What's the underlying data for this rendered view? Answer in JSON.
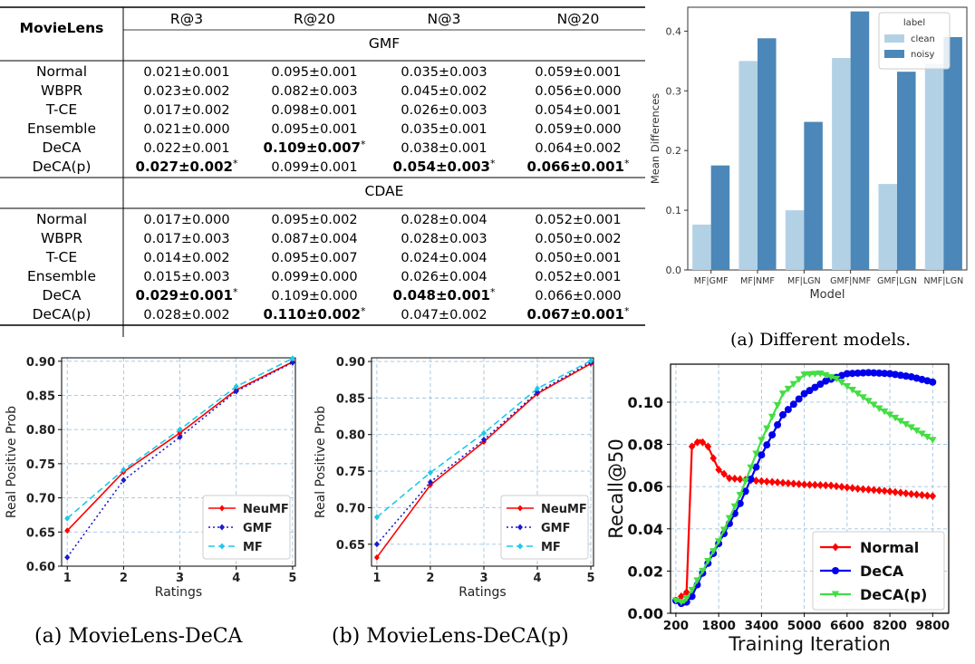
{
  "table": {
    "dataset_label": "MovieLens",
    "columns": [
      "R@3",
      "R@20",
      "N@3",
      "N@20"
    ],
    "sections": [
      {
        "name": "GMF",
        "rows": [
          {
            "method": "Normal",
            "cells": [
              "0.021±0.001",
              "0.095±0.001",
              "0.035±0.003",
              "0.059±0.001"
            ],
            "bold": [
              false,
              false,
              false,
              false
            ],
            "star": [
              false,
              false,
              false,
              false
            ]
          },
          {
            "method": "WBPR",
            "cells": [
              "0.023±0.002",
              "0.082±0.003",
              "0.045±0.002",
              "0.056±0.000"
            ],
            "bold": [
              false,
              false,
              false,
              false
            ],
            "star": [
              false,
              false,
              false,
              false
            ]
          },
          {
            "method": "T-CE",
            "cells": [
              "0.017±0.002",
              "0.098±0.001",
              "0.026±0.003",
              "0.054±0.001"
            ],
            "bold": [
              false,
              false,
              false,
              false
            ],
            "star": [
              false,
              false,
              false,
              false
            ]
          },
          {
            "method": "Ensemble",
            "cells": [
              "0.021±0.000",
              "0.095±0.001",
              "0.035±0.001",
              "0.059±0.000"
            ],
            "bold": [
              false,
              false,
              false,
              false
            ],
            "star": [
              false,
              false,
              false,
              false
            ]
          },
          {
            "method": "DeCA",
            "cells": [
              "0.022±0.001",
              "0.109±0.007",
              "0.038±0.001",
              "0.064±0.002"
            ],
            "bold": [
              false,
              true,
              false,
              false
            ],
            "star": [
              false,
              true,
              false,
              false
            ]
          },
          {
            "method": "DeCA(p)",
            "cells": [
              "0.027±0.002",
              "0.099±0.001",
              "0.054±0.003",
              "0.066±0.001"
            ],
            "bold": [
              true,
              false,
              true,
              true
            ],
            "star": [
              true,
              false,
              true,
              true
            ]
          }
        ]
      },
      {
        "name": "CDAE",
        "rows": [
          {
            "method": "Normal",
            "cells": [
              "0.017±0.000",
              "0.095±0.002",
              "0.028±0.004",
              "0.052±0.001"
            ],
            "bold": [
              false,
              false,
              false,
              false
            ],
            "star": [
              false,
              false,
              false,
              false
            ]
          },
          {
            "method": "WBPR",
            "cells": [
              "0.017±0.003",
              "0.087±0.004",
              "0.028±0.003",
              "0.050±0.002"
            ],
            "bold": [
              false,
              false,
              false,
              false
            ],
            "star": [
              false,
              false,
              false,
              false
            ]
          },
          {
            "method": "T-CE",
            "cells": [
              "0.014±0.002",
              "0.095±0.007",
              "0.024±0.004",
              "0.050±0.001"
            ],
            "bold": [
              false,
              false,
              false,
              false
            ],
            "star": [
              false,
              false,
              false,
              false
            ]
          },
          {
            "method": "Ensemble",
            "cells": [
              "0.015±0.003",
              "0.099±0.000",
              "0.026±0.004",
              "0.052±0.001"
            ],
            "bold": [
              false,
              false,
              false,
              false
            ],
            "star": [
              false,
              false,
              false,
              false
            ]
          },
          {
            "method": "DeCA",
            "cells": [
              "0.029±0.001",
              "0.109±0.000",
              "0.048±0.001",
              "0.066±0.000"
            ],
            "bold": [
              true,
              false,
              true,
              false
            ],
            "star": [
              true,
              false,
              true,
              false
            ]
          },
          {
            "method": "DeCA(p)",
            "cells": [
              "0.028±0.002",
              "0.110±0.002",
              "0.047±0.002",
              "0.067±0.001"
            ],
            "bold": [
              false,
              true,
              false,
              true
            ],
            "star": [
              false,
              true,
              false,
              true
            ]
          }
        ]
      }
    ],
    "star_symbol": "*"
  },
  "captions": {
    "fig_a_top": "(a)  Different models.",
    "fig_a_bottom": "(a)  MovieLens-DeCA",
    "fig_b_bottom": "(b)  MovieLens-DeCA(p)"
  },
  "chart_data": [
    {
      "type": "bar",
      "xlabel": "Model",
      "ylabel": "Mean Differences",
      "ylim": [
        0,
        0.44
      ],
      "yticks": [
        "0.0",
        "0.1",
        "0.2",
        "0.3",
        "0.4"
      ],
      "legend_title": "label",
      "legend_position": "top-right",
      "categories": [
        "MF|GMF",
        "MF|NMF",
        "MF|LGN",
        "GMF|NMF",
        "GMF|LGN",
        "NMF|LGN"
      ],
      "series": [
        {
          "name": "clean",
          "color": "#b3d1e5",
          "values": [
            0.076,
            0.35,
            0.1,
            0.355,
            0.144,
            0.345
          ]
        },
        {
          "name": "noisy",
          "color": "#4b87b8",
          "values": [
            0.175,
            0.388,
            0.248,
            0.433,
            0.332,
            0.39
          ]
        }
      ]
    },
    {
      "type": "line",
      "xlabel": "Ratings",
      "ylabel": "Real Positive Prob",
      "x": [
        1,
        2,
        3,
        4,
        5
      ],
      "ylim": [
        0.6,
        0.905
      ],
      "yticks": [
        "0.60",
        "0.65",
        "0.70",
        "0.75",
        "0.80",
        "0.85",
        "0.90"
      ],
      "xticks": [
        "1",
        "2",
        "3",
        "4",
        "5"
      ],
      "legend_position": "bottom-right",
      "series": [
        {
          "name": "NeuMF",
          "color": "#ff0000",
          "values": [
            0.652,
            0.738,
            0.795,
            0.858,
            0.899
          ]
        },
        {
          "name": "GMF",
          "color": "#1a1acc",
          "values": [
            0.613,
            0.726,
            0.789,
            0.856,
            0.898
          ]
        },
        {
          "name": "MF",
          "color": "#1ec8e6",
          "values": [
            0.67,
            0.741,
            0.8,
            0.863,
            0.904
          ]
        }
      ]
    },
    {
      "type": "line",
      "xlabel": "Ratings",
      "ylabel": "Real Positive Prob",
      "x": [
        1,
        2,
        3,
        4,
        5
      ],
      "ylim": [
        0.62,
        0.905
      ],
      "yticks": [
        "0.65",
        "0.70",
        "0.75",
        "0.80",
        "0.85",
        "0.90"
      ],
      "xticks": [
        "1",
        "2",
        "3",
        "4",
        "5"
      ],
      "legend_position": "bottom-right",
      "series": [
        {
          "name": "NeuMF",
          "color": "#ff0000",
          "values": [
            0.632,
            0.731,
            0.79,
            0.856,
            0.897
          ]
        },
        {
          "name": "GMF",
          "color": "#1a1acc",
          "values": [
            0.65,
            0.735,
            0.793,
            0.858,
            0.899
          ]
        },
        {
          "name": "MF",
          "color": "#1ec8e6",
          "values": [
            0.687,
            0.748,
            0.802,
            0.863,
            0.901
          ]
        }
      ]
    },
    {
      "type": "line",
      "xlabel": "Training Iteration",
      "ylabel": "Recall@50",
      "xlim": [
        0,
        10400
      ],
      "ylim": [
        0,
        0.118
      ],
      "xticks": [
        "200",
        "1800",
        "3400",
        "5000",
        "6600",
        "8200",
        "9800"
      ],
      "yticks": [
        "0.00",
        "0.02",
        "0.04",
        "0.06",
        "0.08",
        "0.10"
      ],
      "legend_position": "bottom-right",
      "series": [
        {
          "name": "Normal",
          "color": "#ff0000",
          "marker": "diamond",
          "x": [
            200,
            600,
            800,
            1100,
            1400,
            1800,
            2200,
            3000,
            4000,
            5000,
            6000,
            7000,
            8000,
            9000,
            9800
          ],
          "values": [
            0.006,
            0.01,
            0.079,
            0.082,
            0.079,
            0.068,
            0.064,
            0.063,
            0.062,
            0.061,
            0.0605,
            0.059,
            0.058,
            0.0565,
            0.0555
          ]
        },
        {
          "name": "DeCA",
          "color": "#0000ee",
          "marker": "circle",
          "x": [
            200,
            500,
            800,
            1200,
            1800,
            2600,
            3400,
            4200,
            5000,
            5800,
            6600,
            7400,
            8200,
            9000,
            9800
          ],
          "values": [
            0.006,
            0.004,
            0.008,
            0.019,
            0.033,
            0.052,
            0.075,
            0.094,
            0.104,
            0.11,
            0.1135,
            0.114,
            0.1135,
            0.112,
            0.1095
          ]
        },
        {
          "name": "DeCA(p)",
          "color": "#44dd44",
          "marker": "triangle",
          "x": [
            200,
            500,
            800,
            1200,
            1800,
            2600,
            3400,
            4200,
            5000,
            5600,
            6200,
            7000,
            7800,
            8600,
            9800
          ],
          "values": [
            0.006,
            0.005,
            0.011,
            0.02,
            0.034,
            0.056,
            0.082,
            0.104,
            0.113,
            0.1135,
            0.111,
            0.104,
            0.097,
            0.091,
            0.082
          ]
        }
      ]
    }
  ]
}
